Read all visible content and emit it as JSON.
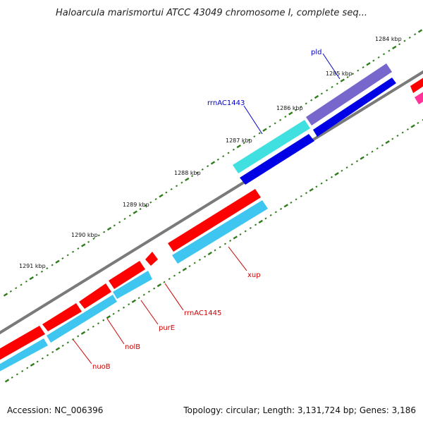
{
  "title": "Haloarcula marismortui ATCC 43049 chromosome I, complete seq...",
  "footer": {
    "accession": "Accession: NC_006396",
    "summary": "Topology: circular; Length: 3,131,724 bp; Genes: 3,186"
  },
  "ticks": {
    "unit": "kbp",
    "labels": [
      "1284 kbp",
      "1285 kbp",
      "1286 kbp",
      "1287 kbp",
      "1288 kbp",
      "1289 kbp",
      "1290 kbp",
      "1291 kbp"
    ],
    "color": "#2e7d1a"
  },
  "colors": {
    "backbone": "#7a7a7a",
    "forward_gene": "#ff0000",
    "reverse_gene": "#3ec6f0",
    "rna_forward": "#40e0e0",
    "rna_reverse": "#0000e6",
    "pld": "#7766cc",
    "blue_label": "#0000cc",
    "red_label": "#cc0000"
  },
  "labels": {
    "pld": "pld",
    "rrnAC1443": "rrnAC1443",
    "xup": "xup",
    "rrnAC1445": "rrnAC1445",
    "purE": "purE",
    "nolB": "nolB",
    "nuoB": "nuoB"
  }
}
